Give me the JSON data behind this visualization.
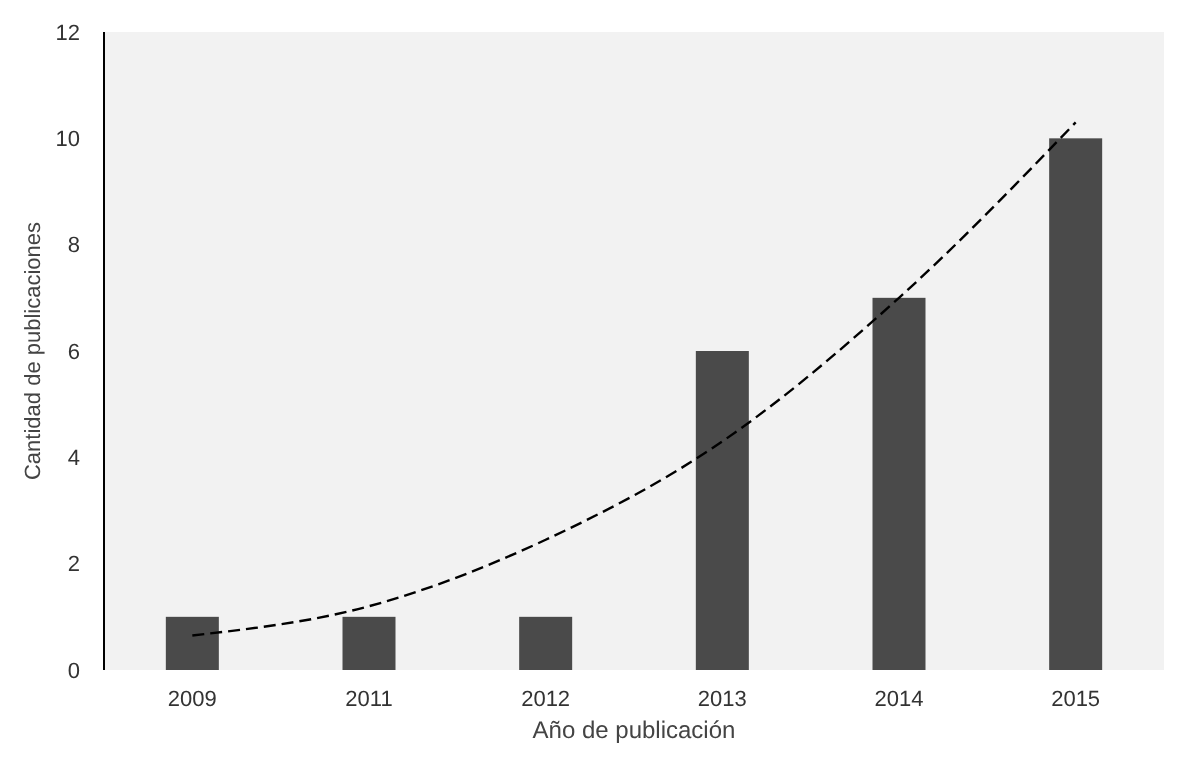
{
  "chart_data": {
    "type": "bar",
    "xlabel": "Año de publicación",
    "ylabel": "Cantidad de publicaciones",
    "categories": [
      "2009",
      "2011",
      "2012",
      "2013",
      "2014",
      "2015"
    ],
    "ylim": [
      0,
      12
    ],
    "yticks": [
      0,
      2,
      4,
      6,
      8,
      10,
      12
    ],
    "grid": false,
    "series": [
      {
        "color": "#4a4a4a",
        "values": [
          1,
          1,
          1,
          6,
          7,
          10
        ]
      },
      {
        "type": "line",
        "color": "#000000",
        "line_style": "dashed",
        "values": [
          0.65,
          1.2,
          2.45,
          4.3,
          7.0,
          10.3
        ]
      }
    ]
  }
}
